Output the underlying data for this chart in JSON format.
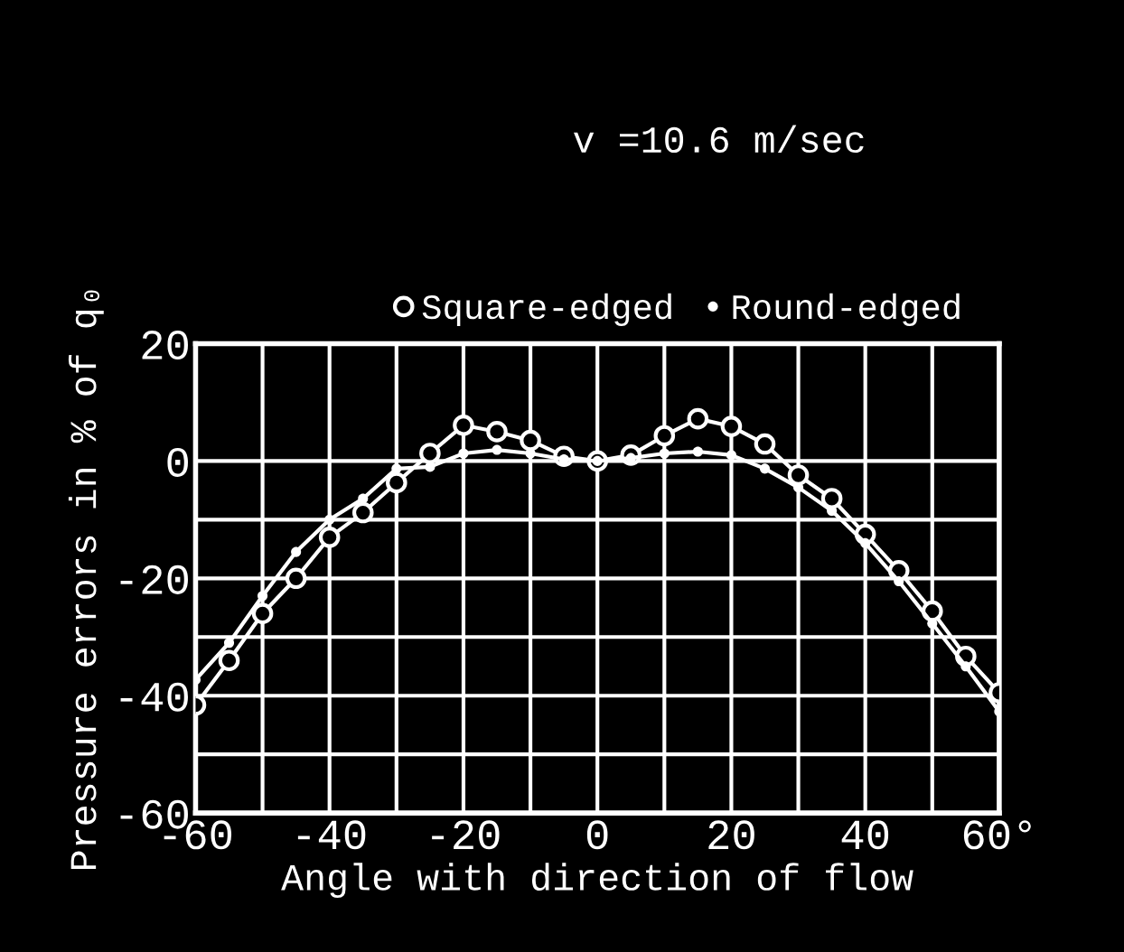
{
  "chart_data": {
    "type": "line",
    "title": "v =10.6 m/sec",
    "xlabel": "Angle with direction of flow",
    "ylabel": "Pressure errors in % of q₀",
    "xlim": [
      -60,
      60
    ],
    "ylim": [
      -60,
      20
    ],
    "xticks": [
      -60,
      {
        "value": -50,
        "label": null
      },
      -40,
      {
        "value": -30,
        "label": null
      },
      -20,
      {
        "value": -10,
        "label": null
      },
      0,
      {
        "value": 10,
        "label": null
      },
      20,
      {
        "value": 30,
        "label": null
      },
      40,
      {
        "value": 50,
        "label": null
      },
      {
        "value": 60,
        "label": "60°"
      }
    ],
    "yticks": [
      -60,
      {
        "value": -50,
        "label": null
      },
      -40,
      {
        "value": -30,
        "label": null
      },
      -20,
      {
        "value": -10,
        "label": null
      },
      0,
      20
    ],
    "grid": true,
    "legend": "top",
    "line_style": "solid",
    "series": [
      {
        "name": "Square-edged",
        "color": "#ffffff",
        "marker": "circle",
        "x": [
          -60,
          -55,
          -50,
          -45,
          -40,
          -35,
          -30,
          -25,
          -20,
          -15,
          -10,
          -5,
          0,
          5,
          10,
          15,
          20,
          25,
          30,
          35,
          40,
          45,
          50,
          55,
          60
        ],
        "values": [
          -41.6,
          -34,
          -26,
          -20,
          -13,
          -8.8,
          -3.7,
          1.3,
          6.1,
          5,
          3.5,
          0.8,
          0,
          1,
          4.3,
          7.2,
          5.9,
          2.9,
          -2.4,
          -6.4,
          -12.5,
          -18.7,
          -25.6,
          -33.3,
          -39.5
        ]
      },
      {
        "name": "Round-edged",
        "color": "#ffffff",
        "marker": "dot",
        "x": [
          -60,
          -55,
          -50,
          -45,
          -40,
          -35,
          -30,
          -25,
          -20,
          -15,
          -10,
          -5,
          0,
          5,
          10,
          15,
          20,
          25,
          30,
          35,
          40,
          45,
          50,
          55,
          60
        ],
        "values": [
          -37.3,
          -31,
          -23,
          -15.5,
          -10,
          -6.4,
          -1.3,
          -1,
          1.3,
          1.9,
          1.3,
          0.3,
          0,
          0.5,
          1.3,
          1.6,
          1,
          -1.3,
          -4.5,
          -8.5,
          -14,
          -20.5,
          -27.7,
          -35,
          -42.7
        ]
      }
    ]
  }
}
